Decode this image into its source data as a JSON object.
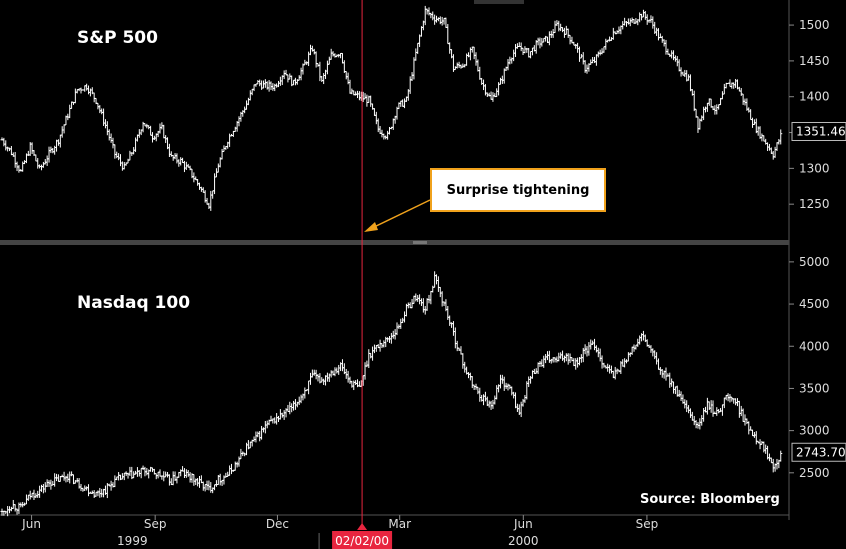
{
  "chart_data": [
    {
      "type": "line",
      "style": "ohlc-bar",
      "title": "S&P 500",
      "ylim": [
        1200,
        1535
      ],
      "yticks": [
        1250,
        1300,
        1350,
        1400,
        1450,
        1500
      ],
      "last_value": "1351.46",
      "points": [
        [
          "1999-05-10",
          1340
        ],
        [
          "1999-05-17",
          1322
        ],
        [
          "1999-05-24",
          1295
        ],
        [
          "1999-05-31",
          1330
        ],
        [
          "1999-06-07",
          1298
        ],
        [
          "1999-06-14",
          1320
        ],
        [
          "1999-06-21",
          1340
        ],
        [
          "1999-06-28",
          1375
        ],
        [
          "1999-07-05",
          1410
        ],
        [
          "1999-07-12",
          1415
        ],
        [
          "1999-07-19",
          1395
        ],
        [
          "1999-07-26",
          1360
        ],
        [
          "1999-08-02",
          1320
        ],
        [
          "1999-08-09",
          1300
        ],
        [
          "1999-08-16",
          1328
        ],
        [
          "1999-08-23",
          1365
        ],
        [
          "1999-08-30",
          1345
        ],
        [
          "1999-09-06",
          1355
        ],
        [
          "1999-09-13",
          1315
        ],
        [
          "1999-09-20",
          1310
        ],
        [
          "1999-09-27",
          1295
        ],
        [
          "1999-10-04",
          1275
        ],
        [
          "1999-10-11",
          1250
        ],
        [
          "1999-10-18",
          1305
        ],
        [
          "1999-10-25",
          1340
        ],
        [
          "1999-11-01",
          1365
        ],
        [
          "1999-11-08",
          1390
        ],
        [
          "1999-11-15",
          1420
        ],
        [
          "1999-11-22",
          1415
        ],
        [
          "1999-11-29",
          1415
        ],
        [
          "1999-12-06",
          1435
        ],
        [
          "1999-12-13",
          1418
        ],
        [
          "1999-12-20",
          1440
        ],
        [
          "1999-12-27",
          1468
        ],
        [
          "2000-01-03",
          1420
        ],
        [
          "2000-01-10",
          1458
        ],
        [
          "2000-01-17",
          1462
        ],
        [
          "2000-01-24",
          1405
        ],
        [
          "2000-01-31",
          1400
        ],
        [
          "2000-02-07",
          1395
        ],
        [
          "2000-02-14",
          1355
        ],
        [
          "2000-02-21",
          1345
        ],
        [
          "2000-02-28",
          1385
        ],
        [
          "2000-03-06",
          1395
        ],
        [
          "2000-03-13",
          1460
        ],
        [
          "2000-03-20",
          1520
        ],
        [
          "2000-03-27",
          1510
        ],
        [
          "2000-04-03",
          1505
        ],
        [
          "2000-04-10",
          1440
        ],
        [
          "2000-04-17",
          1445
        ],
        [
          "2000-04-24",
          1465
        ],
        [
          "2000-05-01",
          1420
        ],
        [
          "2000-05-08",
          1395
        ],
        [
          "2000-05-15",
          1420
        ],
        [
          "2000-05-22",
          1455
        ],
        [
          "2000-05-29",
          1470
        ],
        [
          "2000-06-05",
          1460
        ],
        [
          "2000-06-12",
          1475
        ],
        [
          "2000-06-19",
          1480
        ],
        [
          "2000-06-26",
          1500
        ],
        [
          "2000-07-03",
          1490
        ],
        [
          "2000-07-10",
          1470
        ],
        [
          "2000-07-17",
          1440
        ],
        [
          "2000-07-24",
          1450
        ],
        [
          "2000-07-31",
          1470
        ],
        [
          "2000-08-07",
          1490
        ],
        [
          "2000-08-14",
          1500
        ],
        [
          "2000-08-21",
          1505
        ],
        [
          "2000-08-28",
          1515
        ],
        [
          "2000-09-04",
          1505
        ],
        [
          "2000-09-11",
          1480
        ],
        [
          "2000-09-18",
          1460
        ],
        [
          "2000-09-25",
          1440
        ],
        [
          "2000-10-02",
          1425
        ],
        [
          "2000-10-09",
          1360
        ],
        [
          "2000-10-16",
          1395
        ],
        [
          "2000-10-23",
          1380
        ],
        [
          "2000-10-30",
          1415
        ],
        [
          "2000-11-06",
          1420
        ],
        [
          "2000-11-13",
          1390
        ],
        [
          "2000-11-20",
          1360
        ],
        [
          "2000-11-27",
          1340
        ],
        [
          "2000-12-04",
          1320
        ],
        [
          "2000-12-11",
          1351.46
        ]
      ],
      "annotation": "Surprise tightening"
    },
    {
      "type": "line",
      "style": "ohlc-bar",
      "title": "Nasdaq 100",
      "ylim": [
        2000,
        5200
      ],
      "yticks": [
        2500,
        3000,
        3500,
        4000,
        4500,
        5000
      ],
      "last_value": "2743.70",
      "points": [
        [
          "1999-05-10",
          2020
        ],
        [
          "1999-05-17",
          2120
        ],
        [
          "1999-05-24",
          2080
        ],
        [
          "1999-05-31",
          2230
        ],
        [
          "1999-06-07",
          2290
        ],
        [
          "1999-06-14",
          2380
        ],
        [
          "1999-06-21",
          2420
        ],
        [
          "1999-06-28",
          2470
        ],
        [
          "1999-07-05",
          2380
        ],
        [
          "1999-07-12",
          2310
        ],
        [
          "1999-07-19",
          2250
        ],
        [
          "1999-07-26",
          2300
        ],
        [
          "1999-08-02",
          2400
        ],
        [
          "1999-08-09",
          2460
        ],
        [
          "1999-08-16",
          2480
        ],
        [
          "1999-08-23",
          2520
        ],
        [
          "1999-08-30",
          2510
        ],
        [
          "1999-09-06",
          2460
        ],
        [
          "1999-09-13",
          2400
        ],
        [
          "1999-09-20",
          2510
        ],
        [
          "1999-09-27",
          2450
        ],
        [
          "1999-10-04",
          2380
        ],
        [
          "1999-10-11",
          2310
        ],
        [
          "1999-10-18",
          2420
        ],
        [
          "1999-10-25",
          2480
        ],
        [
          "1999-11-01",
          2620
        ],
        [
          "1999-11-08",
          2800
        ],
        [
          "1999-11-15",
          2900
        ],
        [
          "1999-11-22",
          3050
        ],
        [
          "1999-11-29",
          3130
        ],
        [
          "1999-12-06",
          3200
        ],
        [
          "1999-12-13",
          3280
        ],
        [
          "1999-12-20",
          3440
        ],
        [
          "1999-12-27",
          3640
        ],
        [
          "2000-01-03",
          3600
        ],
        [
          "2000-01-10",
          3700
        ],
        [
          "2000-01-17",
          3770
        ],
        [
          "2000-01-24",
          3580
        ],
        [
          "2000-01-31",
          3500
        ],
        [
          "2000-02-07",
          3900
        ],
        [
          "2000-02-14",
          4010
        ],
        [
          "2000-02-21",
          4080
        ],
        [
          "2000-02-28",
          4200
        ],
        [
          "2000-03-06",
          4440
        ],
        [
          "2000-03-13",
          4590
        ],
        [
          "2000-03-20",
          4440
        ],
        [
          "2000-03-27",
          4800
        ],
        [
          "2000-04-03",
          4500
        ],
        [
          "2000-04-10",
          4150
        ],
        [
          "2000-04-17",
          3800
        ],
        [
          "2000-04-24",
          3550
        ],
        [
          "2000-05-01",
          3400
        ],
        [
          "2000-05-08",
          3300
        ],
        [
          "2000-05-15",
          3600
        ],
        [
          "2000-05-22",
          3500
        ],
        [
          "2000-05-29",
          3200
        ],
        [
          "2000-06-05",
          3600
        ],
        [
          "2000-06-12",
          3780
        ],
        [
          "2000-06-19",
          3850
        ],
        [
          "2000-06-26",
          3830
        ],
        [
          "2000-07-03",
          3900
        ],
        [
          "2000-07-10",
          3800
        ],
        [
          "2000-07-17",
          3950
        ],
        [
          "2000-07-24",
          4020
        ],
        [
          "2000-07-31",
          3780
        ],
        [
          "2000-08-07",
          3650
        ],
        [
          "2000-08-14",
          3800
        ],
        [
          "2000-08-21",
          3950
        ],
        [
          "2000-08-28",
          4120
        ],
        [
          "2000-09-04",
          3950
        ],
        [
          "2000-09-11",
          3700
        ],
        [
          "2000-09-18",
          3600
        ],
        [
          "2000-09-25",
          3400
        ],
        [
          "2000-10-02",
          3200
        ],
        [
          "2000-10-09",
          3050
        ],
        [
          "2000-10-16",
          3300
        ],
        [
          "2000-10-23",
          3200
        ],
        [
          "2000-10-30",
          3400
        ],
        [
          "2000-11-06",
          3350
        ],
        [
          "2000-11-13",
          3100
        ],
        [
          "2000-11-20",
          2950
        ],
        [
          "2000-11-27",
          2800
        ],
        [
          "2000-12-04",
          2600
        ],
        [
          "2000-12-11",
          2743.7
        ]
      ]
    }
  ],
  "x_axis": {
    "months": [
      {
        "label": "Jun",
        "date": "1999-06-01"
      },
      {
        "label": "Sep",
        "date": "1999-09-01"
      },
      {
        "label": "Dec",
        "date": "1999-12-01"
      },
      {
        "label": "Mar",
        "date": "2000-03-01"
      },
      {
        "label": "Jun",
        "date": "2000-06-01"
      },
      {
        "label": "Sep",
        "date": "2000-09-01"
      }
    ],
    "years": [
      {
        "label": "1999",
        "date": "1999-08-15"
      },
      {
        "label": "2000",
        "date": "2000-06-01"
      }
    ],
    "cursor_date": "2000-02-02",
    "cursor_label": "02/02/00"
  },
  "source": "Source: Bloomberg",
  "colors": {
    "background": "#000000",
    "line": "#ffffff",
    "cursor": "#e8253f",
    "callout_border": "#f0a21c",
    "arrow": "#f0a21c"
  }
}
